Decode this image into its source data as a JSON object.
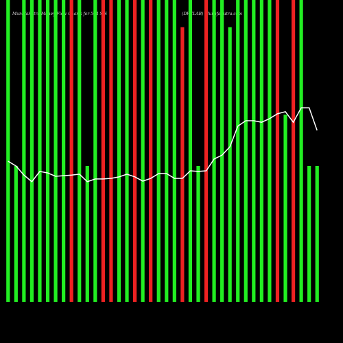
{
  "chart_data": {
    "type": "bar",
    "title": "MunafaSutra Money Flow Charts for 504 SIS",
    "subtitle": "(DRCLAB) MunafaSutra.com",
    "categories": [
      null,
      null,
      null,
      null,
      null,
      null,
      null,
      null,
      null,
      null,
      null,
      null,
      null,
      null,
      null,
      null,
      null,
      null,
      null,
      null,
      null,
      null,
      null,
      null,
      null,
      null,
      null,
      null,
      null,
      null,
      null,
      null,
      null,
      null,
      null,
      null,
      null,
      null,
      null,
      null
    ],
    "ylim": [
      0,
      100
    ],
    "series": [
      {
        "type": "bar",
        "colors": [
          "#22ee22",
          "#22ee22",
          "#22ee22",
          "#22ee22",
          "#22ee22",
          "#22ee22",
          "#22ee22",
          "#22ee22",
          "#ee2222",
          "#22ee22",
          "#22ee22",
          "#22ee22",
          "#ee2222",
          "#ee2222",
          "#22ee22",
          "#22ee22",
          "#ee2222",
          "#22ee22",
          "#ee2222",
          "#22ee22",
          "#22ee22",
          "#22ee22",
          "#ee2222",
          "#22ee22",
          "#22ee22",
          "#ee2222",
          "#22ee22",
          "#22ee22",
          "#22ee22",
          "#22ee22",
          "#22ee22",
          "#22ee22",
          "#22ee22",
          "#22ee22",
          "#ee2222",
          "#22ee22",
          "#ee2222",
          "#22ee22",
          "#22ee22",
          "#22ee22"
        ],
        "values": [
          100,
          45,
          100,
          100,
          100,
          100,
          100,
          100,
          100,
          100,
          45,
          100,
          100,
          100,
          100,
          100,
          100,
          100,
          100,
          100,
          100,
          100,
          91,
          100,
          45,
          100,
          100,
          100,
          91,
          100,
          100,
          100,
          100,
          100,
          100,
          62,
          100,
          100,
          45,
          45
        ]
      },
      {
        "type": "line",
        "color": "#ffffff",
        "values": [
          46.6,
          45,
          42,
          39.8,
          43.2,
          42.7,
          41.6,
          41.8,
          42,
          42.3,
          39.8,
          40.7,
          40.7,
          40.9,
          41.4,
          42.3,
          41.4,
          40,
          40.9,
          42.5,
          42.5,
          40.9,
          40.9,
          43.4,
          43.2,
          43.4,
          47.3,
          48.6,
          51.4,
          58.2,
          60,
          60,
          59.5,
          60.7,
          62.3,
          63,
          59.5,
          64.3,
          64.3,
          56.8
        ]
      }
    ]
  }
}
